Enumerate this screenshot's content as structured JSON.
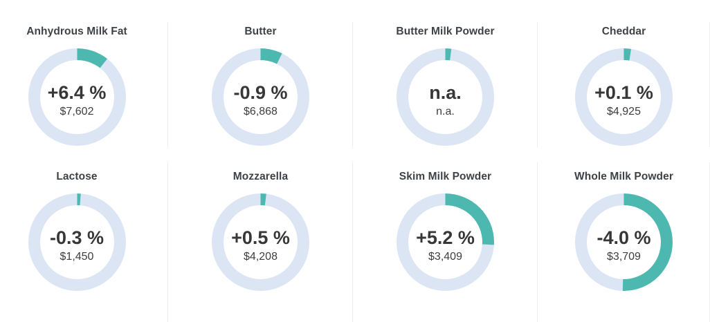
{
  "page": {
    "background": "#ffffff"
  },
  "colors": {
    "arc": "#4db8b0",
    "track": "#dbe5f4",
    "title_text": "#3e4247",
    "change_text": "#373737",
    "price_text": "#3d3d3d",
    "divider": "#ededed"
  },
  "chart_data": {
    "type": "pie",
    "variant": "donut-kpi-grid",
    "legend": "none",
    "arc_start": "top",
    "arc_direction": "clockwise",
    "charts": [
      {
        "title": "Anhydrous Milk Fat",
        "change": "+6.4 %",
        "price": "$7,602",
        "arc_fraction": 0.105
      },
      {
        "title": "Butter",
        "change": "-0.9 %",
        "price": "$6,868",
        "arc_fraction": 0.072
      },
      {
        "title": "Butter Milk Powder",
        "change": "n.a.",
        "price": "n.a.",
        "arc_fraction": 0.019
      },
      {
        "title": "Cheddar",
        "change": "+0.1 %",
        "price": "$4,925",
        "arc_fraction": 0.023
      },
      {
        "title": "Lactose",
        "change": "-0.3 %",
        "price": "$1,450",
        "arc_fraction": 0.011
      },
      {
        "title": "Mozzarella",
        "change": "+0.5 %",
        "price": "$4,208",
        "arc_fraction": 0.018
      },
      {
        "title": "Skim Milk Powder",
        "change": "+5.2 %",
        "price": "$3,409",
        "arc_fraction": 0.258
      },
      {
        "title": "Whole Milk Powder",
        "change": "-4.0 %",
        "price": "$3,709",
        "arc_fraction": 0.503
      }
    ]
  }
}
